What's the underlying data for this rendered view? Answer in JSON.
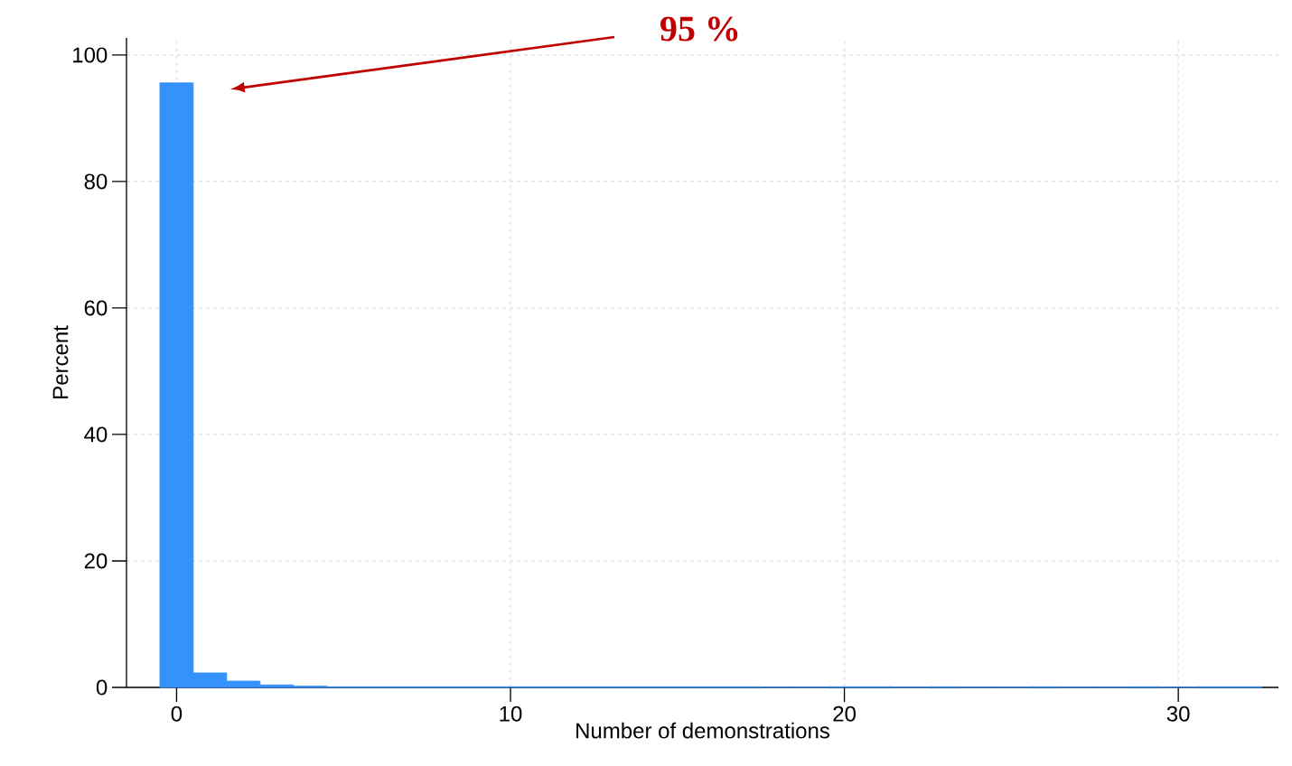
{
  "chart_data": {
    "type": "histogram",
    "xlabel": "Number of demonstrations",
    "ylabel": "Percent",
    "bins": [
      -0.5,
      0.5,
      1.5,
      2.5,
      3.5,
      4.5,
      5.5,
      6.5,
      7.5,
      8.5,
      9.5,
      10.5,
      11.5,
      12.5,
      13.5,
      14.5,
      15.5,
      16.5,
      17.5,
      18.5,
      19.5,
      20.5,
      21.5,
      22.5,
      23.5,
      24.5,
      25.5,
      26.5,
      27.5,
      28.5,
      29.5,
      30.5,
      31.5,
      32.5
    ],
    "values": [
      95.6,
      2.3,
      1.0,
      0.4,
      0.2,
      0.1,
      0.1,
      0.1,
      0.1,
      0.1,
      0.1,
      0.1,
      0.1,
      0.1,
      0.1,
      0.1,
      0.1,
      0.1,
      0,
      0,
      0.1,
      0.1,
      0,
      0.1,
      0,
      0,
      0.1,
      0,
      0,
      0.1,
      0,
      0.1,
      0.1
    ],
    "color": "#3592fc",
    "xlim": [
      -1.5,
      33
    ],
    "ylim": [
      0,
      102.7
    ],
    "xticks": [
      0,
      10,
      20,
      30
    ],
    "yticks": [
      0,
      20,
      40,
      60,
      80,
      100
    ],
    "grid": true,
    "annotations": [
      "95 %"
    ]
  }
}
